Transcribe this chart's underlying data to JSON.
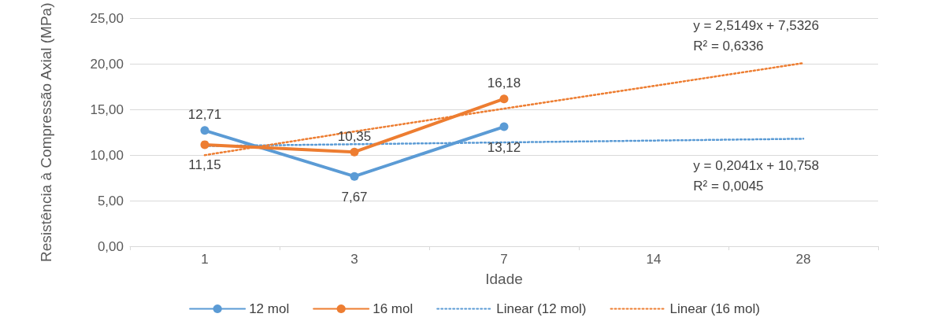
{
  "chart_data": {
    "type": "line",
    "xlabel": "Idade",
    "ylabel": "Resistência à Compressão Axial (MPa)",
    "categories": [
      "1",
      "3",
      "7",
      "14",
      "28"
    ],
    "series": [
      {
        "name": "12 mol",
        "color": "#5b9bd5",
        "values": [
          12.71,
          7.67,
          13.12,
          null,
          null
        ],
        "value_labels": [
          "12,71",
          "7,67",
          "13,12",
          null,
          null
        ],
        "marker": "circle",
        "line_style": "solid"
      },
      {
        "name": "16 mol",
        "color": "#ed7d31",
        "values": [
          11.15,
          10.35,
          16.18,
          null,
          null
        ],
        "value_labels": [
          "11,15",
          "10,35",
          "16,18",
          null,
          null
        ],
        "marker": "circle",
        "line_style": "solid"
      },
      {
        "name": "Linear (12 mol)",
        "color": "#5b9bd5",
        "values": [
          11.0,
          11.2,
          11.4,
          11.6,
          11.8
        ],
        "marker": "none",
        "line_style": "dotted"
      },
      {
        "name": "Linear (16 mol)",
        "color": "#ed7d31",
        "values": [
          10.0,
          12.6,
          15.1,
          17.6,
          20.1
        ],
        "marker": "none",
        "line_style": "dotted"
      }
    ],
    "ylim": [
      0,
      25
    ],
    "yticks": [
      {
        "value": 0,
        "label": "0,00"
      },
      {
        "value": 5,
        "label": "5,00"
      },
      {
        "value": 10,
        "label": "10,00"
      },
      {
        "value": 15,
        "label": "15,00"
      },
      {
        "value": 20,
        "label": "20,00"
      },
      {
        "value": 25,
        "label": "25,00"
      }
    ],
    "grid": "y",
    "legend": "bottom",
    "annotations": [
      {
        "text": "y = 2,5149x + 7,5326\nR² = 0,6336",
        "x": "28",
        "y": 20.1
      },
      {
        "text": "y = 0,2041x + 10,758\nR² = 0,0045",
        "x": "28",
        "y": 11.8
      }
    ]
  }
}
